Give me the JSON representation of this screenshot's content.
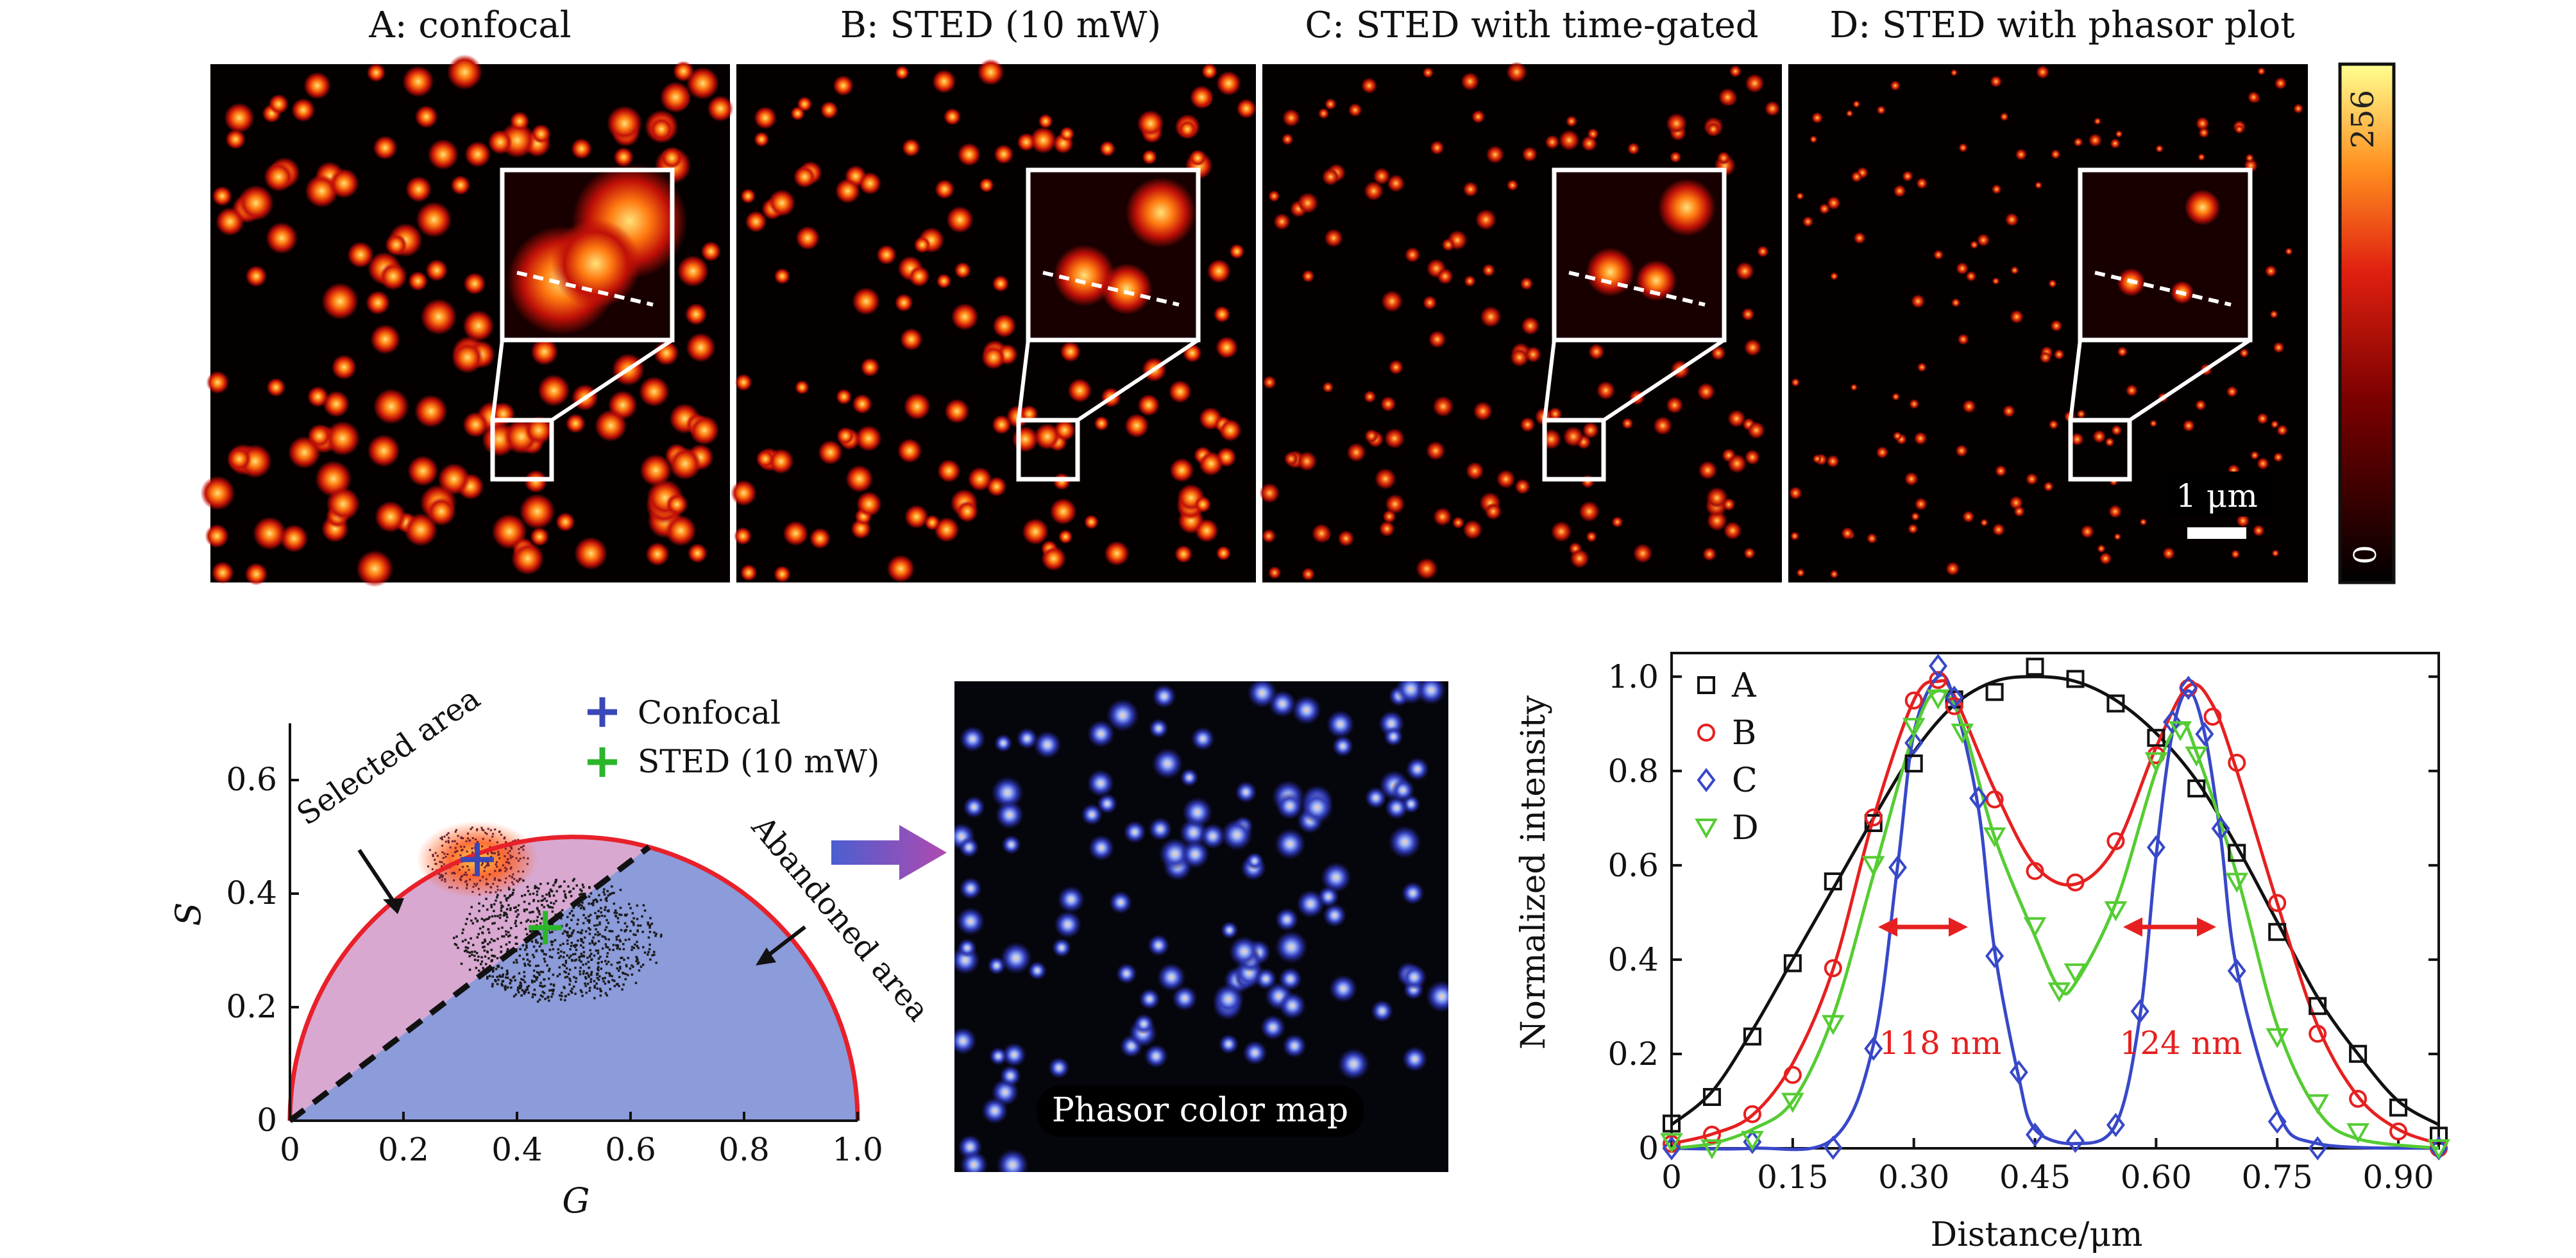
{
  "panels": [
    {
      "title": "A: confocal"
    },
    {
      "title": "B: STED (10 mW)"
    },
    {
      "title": "C: STED with time-gated"
    },
    {
      "title": "D: STED with phasor plot"
    }
  ],
  "colors": {
    "hot_low": "#000000",
    "hot_mid": "#e02010",
    "hot_high": "#ffff80",
    "phasor_blue": "#8c9bd9",
    "selected_pink": "#d8a8d0",
    "semicircle_red": "#e8202a"
  },
  "colorbar": {
    "max_label": "256",
    "min_label": "0"
  },
  "scalebar": {
    "label": "1 μm"
  },
  "phasor_map": {
    "label": "Phasor color map"
  },
  "chart_data": [
    {
      "type": "scatter",
      "name": "phasor plot",
      "xlabel": "G",
      "ylabel": "S",
      "xlim": [
        0,
        1.0
      ],
      "ylim": [
        0,
        0.7
      ],
      "xticks": [
        "0",
        "0.2",
        "0.4",
        "0.6",
        "0.8",
        "1.0"
      ],
      "yticks": [
        "0",
        "0.2",
        "0.4",
        "0.6"
      ],
      "legend": [
        {
          "name": "Confocal",
          "marker": "+",
          "color": "#3a47b8"
        },
        {
          "name": "STED (10 mW)",
          "marker": "+",
          "color": "#2bb52b"
        }
      ],
      "points": [
        {
          "series": "Confocal",
          "x": 0.33,
          "y": 0.46
        },
        {
          "series": "STED (10 mW)",
          "x": 0.45,
          "y": 0.34
        }
      ],
      "divider_line": [
        [
          0,
          0
        ],
        [
          0.63,
          0.48
        ]
      ],
      "annotations": [
        "Selected area",
        "Abandoned area"
      ]
    },
    {
      "type": "line",
      "name": "line profiles",
      "xlabel": "Distance/μm",
      "ylabel": "Normalized intensity",
      "xlim": [
        0,
        0.95
      ],
      "ylim": [
        0,
        1.05
      ],
      "xticks": [
        "0",
        "0.15",
        "0.30",
        "0.45",
        "0.60",
        "0.75",
        "0.90"
      ],
      "yticks": [
        "0",
        "0.2",
        "0.4",
        "0.6",
        "0.8",
        "1.0"
      ],
      "legend_position": "top-left",
      "series": [
        {
          "name": "A",
          "color": "#111111",
          "marker": "square",
          "x": [
            0.0,
            0.05,
            0.1,
            0.15,
            0.2,
            0.25,
            0.3,
            0.35,
            0.4,
            0.45,
            0.5,
            0.55,
            0.6,
            0.65,
            0.7,
            0.75,
            0.8,
            0.85,
            0.9,
            0.95
          ],
          "values": [
            0.05,
            0.12,
            0.25,
            0.4,
            0.55,
            0.7,
            0.84,
            0.94,
            0.99,
            1.0,
            0.99,
            0.95,
            0.88,
            0.78,
            0.64,
            0.48,
            0.32,
            0.2,
            0.1,
            0.05
          ]
        },
        {
          "name": "B",
          "color": "#e62020",
          "marker": "circle",
          "x": [
            0.0,
            0.05,
            0.1,
            0.15,
            0.2,
            0.25,
            0.3,
            0.33,
            0.35,
            0.4,
            0.45,
            0.5,
            0.55,
            0.6,
            0.64,
            0.67,
            0.7,
            0.75,
            0.8,
            0.85,
            0.9,
            0.95
          ],
          "values": [
            0.01,
            0.03,
            0.07,
            0.18,
            0.38,
            0.7,
            0.95,
            0.99,
            0.96,
            0.76,
            0.6,
            0.56,
            0.64,
            0.85,
            0.98,
            0.94,
            0.8,
            0.52,
            0.26,
            0.11,
            0.04,
            0.01
          ]
        },
        {
          "name": "C",
          "color": "#3848c8",
          "marker": "diamond",
          "x": [
            0.0,
            0.1,
            0.2,
            0.25,
            0.28,
            0.3,
            0.33,
            0.35,
            0.38,
            0.4,
            0.43,
            0.45,
            0.5,
            0.55,
            0.58,
            0.6,
            0.62,
            0.64,
            0.66,
            0.68,
            0.7,
            0.75,
            0.8,
            0.95
          ],
          "values": [
            0.0,
            0.0,
            0.02,
            0.22,
            0.6,
            0.88,
            1.0,
            0.95,
            0.72,
            0.42,
            0.15,
            0.04,
            0.01,
            0.05,
            0.28,
            0.62,
            0.88,
            0.97,
            0.88,
            0.66,
            0.38,
            0.08,
            0.01,
            0.0
          ]
        },
        {
          "name": "D",
          "color": "#55cc33",
          "marker": "triangle-down",
          "x": [
            0.0,
            0.05,
            0.1,
            0.15,
            0.2,
            0.25,
            0.3,
            0.33,
            0.36,
            0.4,
            0.45,
            0.48,
            0.5,
            0.55,
            0.6,
            0.63,
            0.65,
            0.7,
            0.75,
            0.8,
            0.85,
            0.95
          ],
          "values": [
            0.0,
            0.01,
            0.04,
            0.1,
            0.28,
            0.58,
            0.88,
            0.97,
            0.9,
            0.66,
            0.45,
            0.34,
            0.35,
            0.52,
            0.8,
            0.9,
            0.84,
            0.58,
            0.26,
            0.08,
            0.02,
            0.0
          ]
        }
      ],
      "annotations": [
        {
          "text": "118 nm",
          "color": "#e62020"
        },
        {
          "text": "124 nm",
          "color": "#e62020"
        }
      ]
    }
  ]
}
